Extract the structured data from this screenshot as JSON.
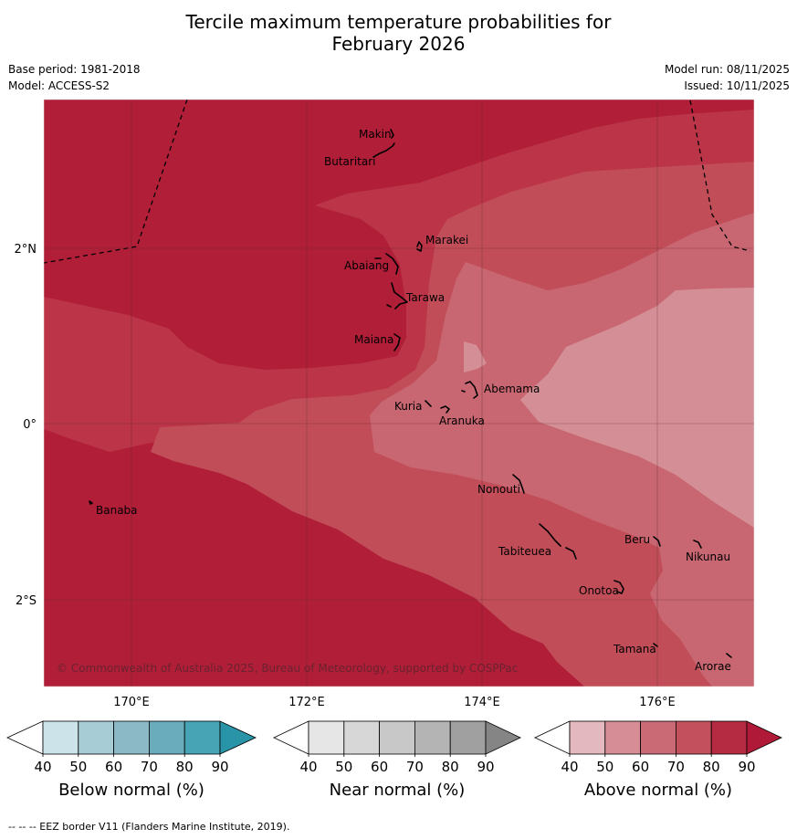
{
  "title_line1": "Tercile maximum temperature probabilities for",
  "title_line2": "February 2026",
  "base_period": "Base period: 1981-2018",
  "model": "Model: ACCESS-S2",
  "model_run": "Model run: 08/11/2025",
  "issued": "Issued: 10/11/2025",
  "copyright": "© Commonwealth of Australia 2025, Bureau of Meteorology, supported by COSPPac",
  "footnote": "--  --  -- EEZ border V11 (Flanders Marine Institute, 2019).",
  "axes": {
    "lon_ticks": [
      "170°E",
      "172°E",
      "174°E",
      "176°E"
    ],
    "lat_ticks": [
      "2°N",
      "0°",
      "2°S"
    ]
  },
  "islands": [
    {
      "name": "Makin"
    },
    {
      "name": "Butaritari"
    },
    {
      "name": "Marakei"
    },
    {
      "name": "Abaiang"
    },
    {
      "name": "Tarawa"
    },
    {
      "name": "Maiana"
    },
    {
      "name": "Abemama"
    },
    {
      "name": "Kuria"
    },
    {
      "name": "Aranuka"
    },
    {
      "name": "Banaba"
    },
    {
      "name": "Nonouti"
    },
    {
      "name": "Tabiteuea"
    },
    {
      "name": "Beru"
    },
    {
      "name": "Nikunau"
    },
    {
      "name": "Onotoa"
    },
    {
      "name": "Tamana"
    },
    {
      "name": "Arorae"
    }
  ],
  "colorbars": [
    {
      "label": "Below normal (%)",
      "ticks": [
        "40",
        "50",
        "60",
        "70",
        "80",
        "90"
      ],
      "colors": [
        "#ffffff",
        "#cce3ea",
        "#a8ccd5",
        "#8bb9c6",
        "#6aacbc",
        "#47a4b5",
        "#2994a8"
      ]
    },
    {
      "label": "Near normal (%)",
      "ticks": [
        "40",
        "50",
        "60",
        "70",
        "80",
        "90"
      ],
      "colors": [
        "#ffffff",
        "#e6e6e6",
        "#d7d7d7",
        "#c8c8c8",
        "#b4b4b4",
        "#a0a0a0",
        "#858585"
      ]
    },
    {
      "label": "Above normal (%)",
      "ticks": [
        "40",
        "50",
        "60",
        "70",
        "80",
        "90"
      ],
      "colors": [
        "#ffffff",
        "#e3b8be",
        "#d68d95",
        "#c96a75",
        "#c2505d",
        "#b42b42",
        "#b01a38"
      ]
    }
  ],
  "map_colors": {
    "p90": "#b01e38",
    "p80": "#bc3447",
    "p70": "#c14d58",
    "p60": "#c86771",
    "p50": "#d48f96"
  }
}
